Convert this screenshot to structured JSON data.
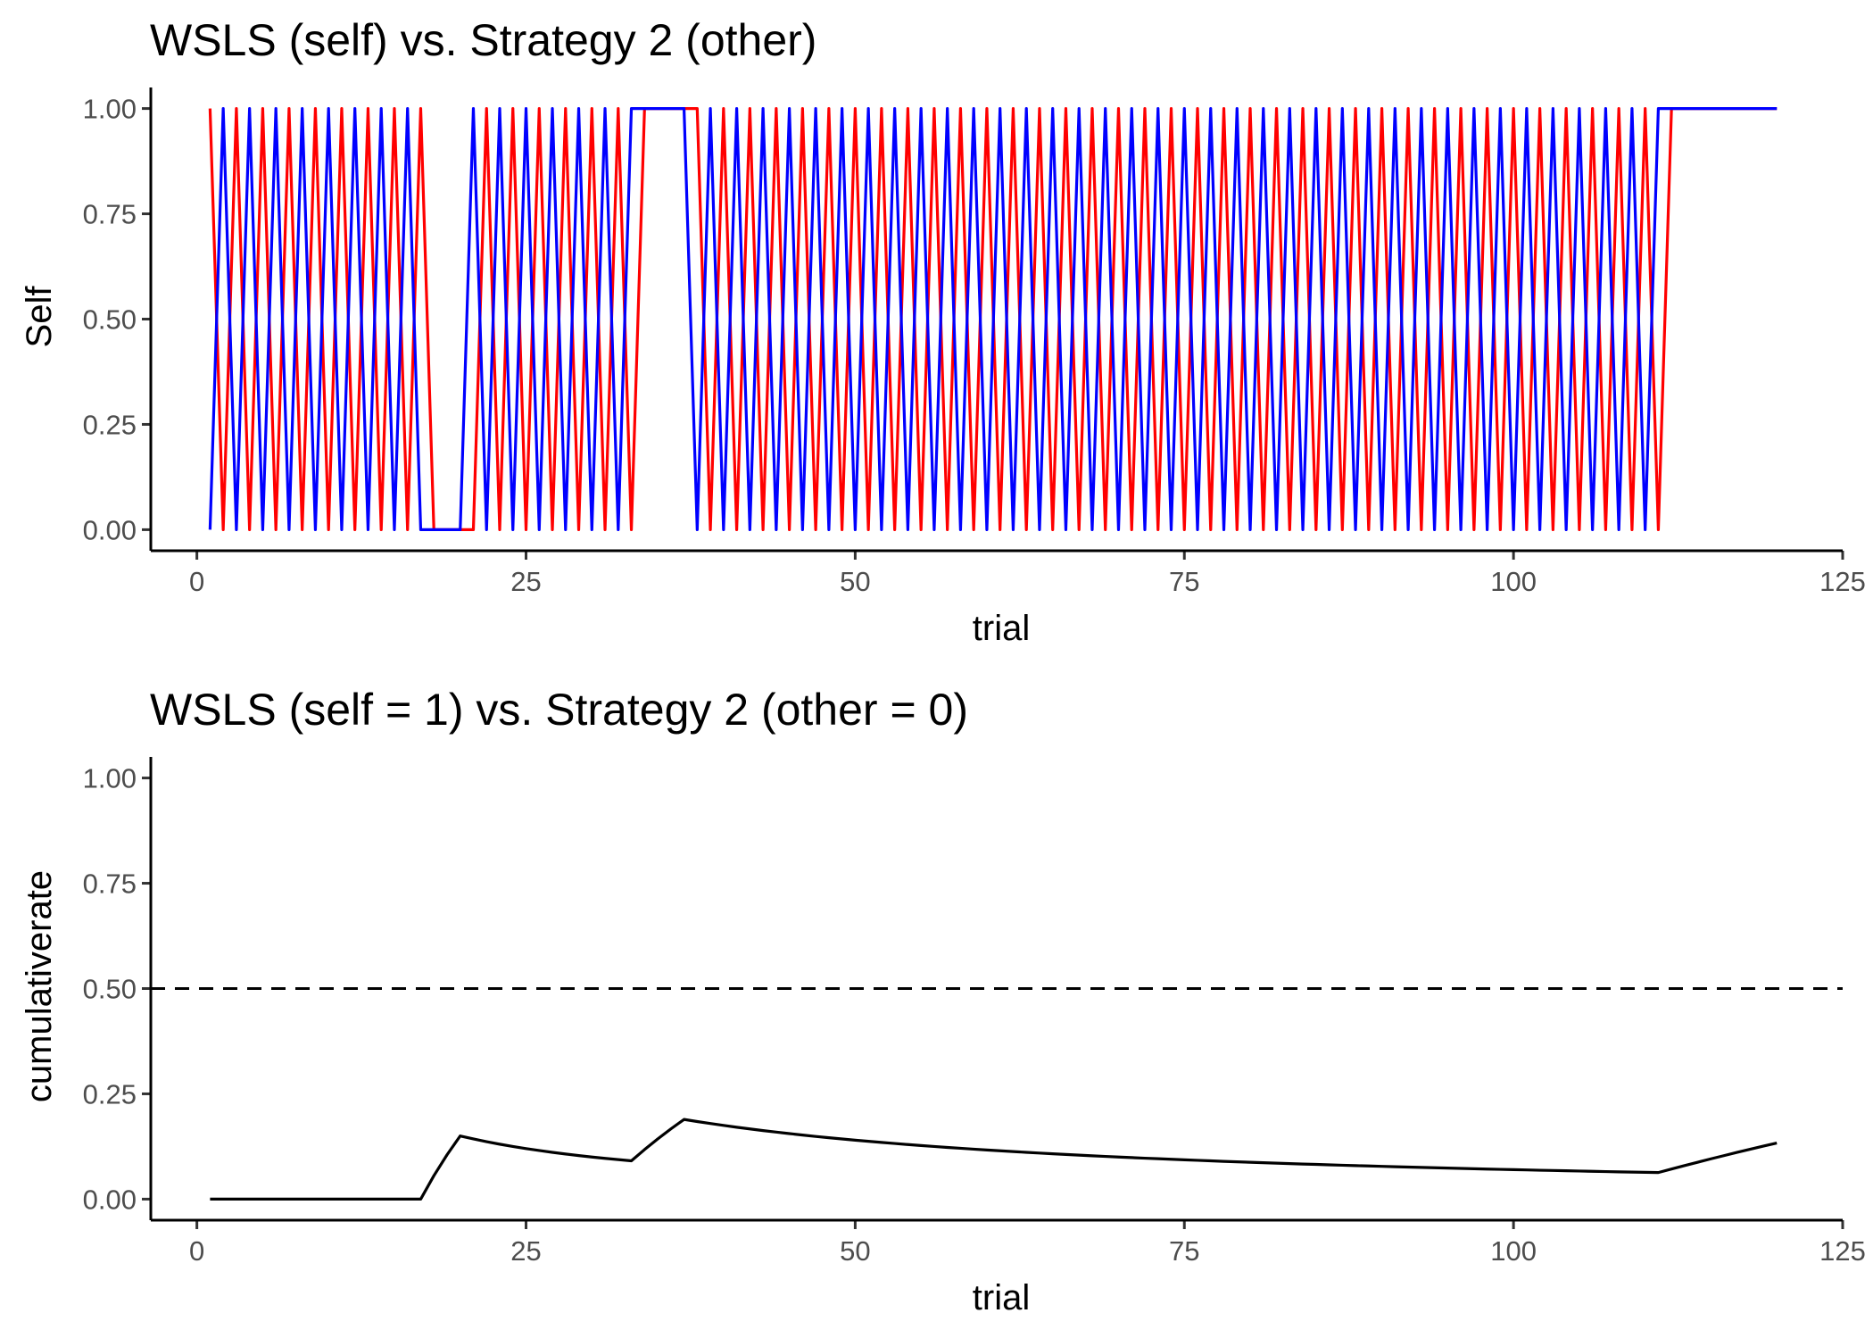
{
  "chart_data": [
    {
      "type": "line",
      "title": "WSLS (self) vs. Strategy 2 (other)",
      "xlabel": "trial",
      "ylabel": "Self",
      "xlim": [
        -3.5,
        125
      ],
      "ylim": [
        -0.05,
        1.05
      ],
      "xticks": [
        0,
        25,
        50,
        75,
        100,
        125
      ],
      "xtick_labels": [
        "0",
        "25",
        "50",
        "75",
        "100",
        "125"
      ],
      "yticks": [
        0,
        0.25,
        0.5,
        0.75,
        1
      ],
      "ytick_labels": [
        "0.00",
        "0.25",
        "0.50",
        "0.75",
        "1.00"
      ],
      "grid": false,
      "legend": "none",
      "x_start": 1,
      "series": [
        {
          "color": "#ff0000",
          "values": [
            1,
            0,
            1,
            0,
            1,
            0,
            1,
            0,
            1,
            0,
            1,
            0,
            1,
            0,
            1,
            0,
            1,
            0,
            0,
            0,
            0,
            1,
            0,
            1,
            0,
            1,
            0,
            1,
            0,
            1,
            0,
            1,
            0,
            1,
            1,
            1,
            1,
            1,
            0,
            1,
            0,
            1,
            0,
            1,
            0,
            1,
            0,
            1,
            0,
            1,
            0,
            1,
            0,
            1,
            0,
            1,
            0,
            1,
            0,
            1,
            0,
            1,
            0,
            1,
            0,
            1,
            0,
            1,
            0,
            1,
            0,
            1,
            0,
            1,
            0,
            1,
            0,
            1,
            0,
            1,
            0,
            1,
            0,
            1,
            0,
            1,
            0,
            1,
            0,
            1,
            0,
            1,
            0,
            1,
            0,
            1,
            0,
            1,
            0,
            1,
            0,
            1,
            0,
            1,
            0,
            1,
            0,
            1,
            0,
            1,
            0,
            1,
            1,
            1,
            1,
            1,
            1,
            1,
            1,
            1
          ]
        },
        {
          "color": "#0000ff",
          "values": [
            0,
            1,
            0,
            1,
            0,
            1,
            0,
            1,
            0,
            1,
            0,
            1,
            0,
            1,
            0,
            1,
            0,
            0,
            0,
            0,
            1,
            0,
            1,
            0,
            1,
            0,
            1,
            0,
            1,
            0,
            1,
            0,
            1,
            1,
            1,
            1,
            1,
            0,
            1,
            0,
            1,
            0,
            1,
            0,
            1,
            0,
            1,
            0,
            1,
            0,
            1,
            0,
            1,
            0,
            1,
            0,
            1,
            0,
            1,
            0,
            1,
            0,
            1,
            0,
            1,
            0,
            1,
            0,
            1,
            0,
            1,
            0,
            1,
            0,
            1,
            0,
            1,
            0,
            1,
            0,
            1,
            0,
            1,
            0,
            1,
            0,
            1,
            0,
            1,
            0,
            1,
            0,
            1,
            0,
            1,
            0,
            1,
            0,
            1,
            0,
            1,
            0,
            1,
            0,
            1,
            0,
            1,
            0,
            1,
            0,
            1,
            1,
            1,
            1,
            1,
            1,
            1,
            1,
            1,
            1
          ]
        }
      ]
    },
    {
      "type": "line",
      "title": "WSLS (self = 1) vs. Strategy 2 (other = 0)",
      "xlabel": "trial",
      "ylabel": "cumulativerate",
      "xlim": [
        -3.5,
        125
      ],
      "ylim": [
        -0.05,
        1.05
      ],
      "xticks": [
        0,
        25,
        50,
        75,
        100,
        125
      ],
      "xtick_labels": [
        "0",
        "25",
        "50",
        "75",
        "100",
        "125"
      ],
      "yticks": [
        0,
        0.25,
        0.5,
        0.75,
        1
      ],
      "ytick_labels": [
        "0.00",
        "0.25",
        "0.50",
        "0.75",
        "1.00"
      ],
      "grid": false,
      "legend": "none",
      "hline": {
        "y": 0.5,
        "style": "dashed",
        "color": "#000000"
      },
      "x_start": 1,
      "series": [
        {
          "color": "#000000",
          "values": [
            0,
            0,
            0,
            0,
            0,
            0,
            0,
            0,
            0,
            0,
            0,
            0,
            0,
            0,
            0,
            0,
            0,
            0.0556,
            0.1053,
            0.15,
            0.1429,
            0.1364,
            0.1304,
            0.125,
            0.12,
            0.1154,
            0.1111,
            0.1071,
            0.1034,
            0.1,
            0.0968,
            0.0938,
            0.0909,
            0.1176,
            0.1429,
            0.1667,
            0.1892,
            0.1842,
            0.1795,
            0.175,
            0.1707,
            0.1667,
            0.1628,
            0.1591,
            0.1556,
            0.1522,
            0.1489,
            0.1458,
            0.1429,
            0.14,
            0.1373,
            0.1346,
            0.1321,
            0.1296,
            0.1273,
            0.125,
            0.1228,
            0.1207,
            0.1186,
            0.1167,
            0.1148,
            0.1129,
            0.1111,
            0.1094,
            0.1077,
            0.1061,
            0.1045,
            0.1029,
            0.1014,
            0.1,
            0.0986,
            0.0972,
            0.0959,
            0.0946,
            0.0933,
            0.0921,
            0.0909,
            0.0897,
            0.0886,
            0.0875,
            0.0864,
            0.0854,
            0.0843,
            0.0833,
            0.0824,
            0.0814,
            0.0805,
            0.0795,
            0.0787,
            0.0778,
            0.0769,
            0.0761,
            0.0753,
            0.0745,
            0.0737,
            0.0729,
            0.0722,
            0.0714,
            0.0707,
            0.07,
            0.0693,
            0.0686,
            0.068,
            0.0673,
            0.0667,
            0.066,
            0.0654,
            0.0648,
            0.0642,
            0.0636,
            0.0631,
            0.0714,
            0.0796,
            0.0877,
            0.0957,
            0.1034,
            0.1111,
            0.1186,
            0.1261,
            0.1333
          ]
        }
      ]
    }
  ]
}
